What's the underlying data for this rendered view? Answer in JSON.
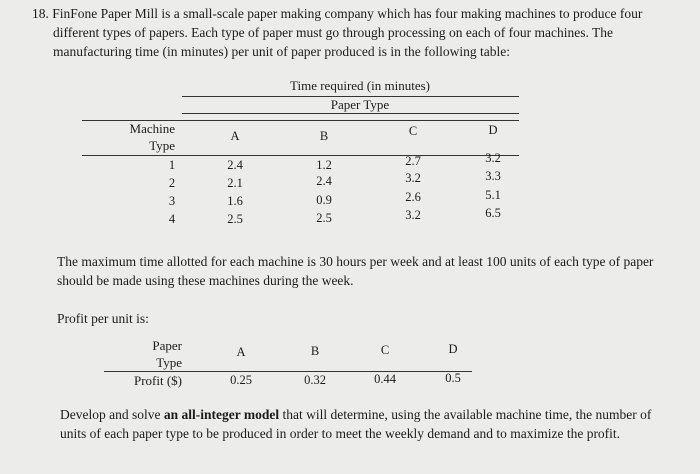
{
  "question": {
    "line1": "18. FinFone Paper Mill is a small-scale paper making company which has four making machines to produce four",
    "line2": "different types of papers. Each type of paper must go through processing on each of four machines. The",
    "line3": "manufacturing time (in minutes) per unit of paper produced is  in the following table:"
  },
  "time_table": {
    "title": "Time required (in minutes)",
    "subtitle": "Paper Type",
    "row_header_line1": "Machine",
    "row_header_line2": "Type",
    "columns": [
      "A",
      "B",
      "C",
      "D"
    ],
    "rows": [
      {
        "machine": "1",
        "values": [
          "2.4",
          "1.2",
          "2.7",
          "3.2"
        ]
      },
      {
        "machine": "2",
        "values": [
          "2.1",
          "2.4",
          "3.2",
          "3.3"
        ]
      },
      {
        "machine": "3",
        "values": [
          "1.6",
          "0.9",
          "2.6",
          "5.1"
        ]
      },
      {
        "machine": "4",
        "values": [
          "2.5",
          "2.5",
          "3.2",
          "6.5"
        ]
      }
    ]
  },
  "constraint_text": {
    "line1": "The maximum time allotted for each machine is 30 hours per week and at least 100 units of each type of paper",
    "line2": "should be made using these machines during the week."
  },
  "profit_label": "Profit per unit is:",
  "profit_table": {
    "row_header_line1": "Paper",
    "row_header_line2": "Type",
    "row_label": "Profit ($)",
    "columns": [
      "A",
      "B",
      "C",
      "D"
    ],
    "values": [
      "0.25",
      "0.32",
      "0.44",
      "0.5"
    ]
  },
  "final_text": {
    "line1_pre": "Develop and solve ",
    "line1_bold": "an all-integer model",
    "line1_post": " that will determine, using the available machine time, the number of",
    "line2": "units of each paper type to be produced in order to meet the weekly demand and to maximize the profit."
  }
}
